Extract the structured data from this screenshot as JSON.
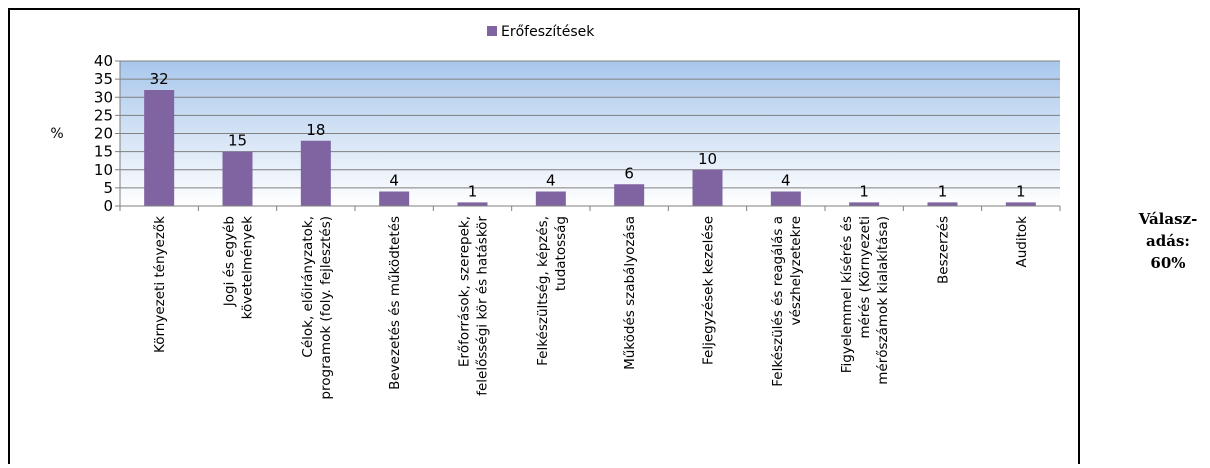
{
  "chart_data": {
    "type": "bar",
    "title": "",
    "ylabel": "%",
    "xlabel": "",
    "ylim": [
      0,
      40
    ],
    "yticks": [
      0,
      5,
      10,
      15,
      20,
      25,
      30,
      35,
      40
    ],
    "grid": true,
    "legend_position": "top-center",
    "bar_color": "#8064A2",
    "background_gradient": [
      "#A9C7EC",
      "#FFFFFF"
    ],
    "categories": [
      [
        "Környezeti tényezők"
      ],
      [
        "Jogi és egyéb",
        "követelmények"
      ],
      [
        "Célok, előirányzatok,",
        "programok (foly. fejlesztés)"
      ],
      [
        "Bevezetés és működtetés"
      ],
      [
        "Erőforrások, szerepek,",
        "felelősségi kör és hatáskör"
      ],
      [
        "Felkészültség, képzés,",
        "tudatosság"
      ],
      [
        "Működés szabályozása"
      ],
      [
        "Feljegyzések kezelése"
      ],
      [
        "Felkészülés és reagálás a",
        "vészhelyzetekre"
      ],
      [
        "Figyelemmel kísérés és",
        "mérés (Környezeti",
        "mérőszámok kialakítása)"
      ],
      [
        "Beszerzés"
      ],
      [
        "Auditok"
      ]
    ],
    "series": [
      {
        "name": "Erőfeszítések",
        "values": [
          32,
          15,
          18,
          4,
          1,
          4,
          6,
          10,
          4,
          1,
          1,
          1
        ]
      }
    ]
  },
  "response_label": {
    "line1": "Válasz-",
    "line2": "adás:",
    "line3": "60%"
  }
}
